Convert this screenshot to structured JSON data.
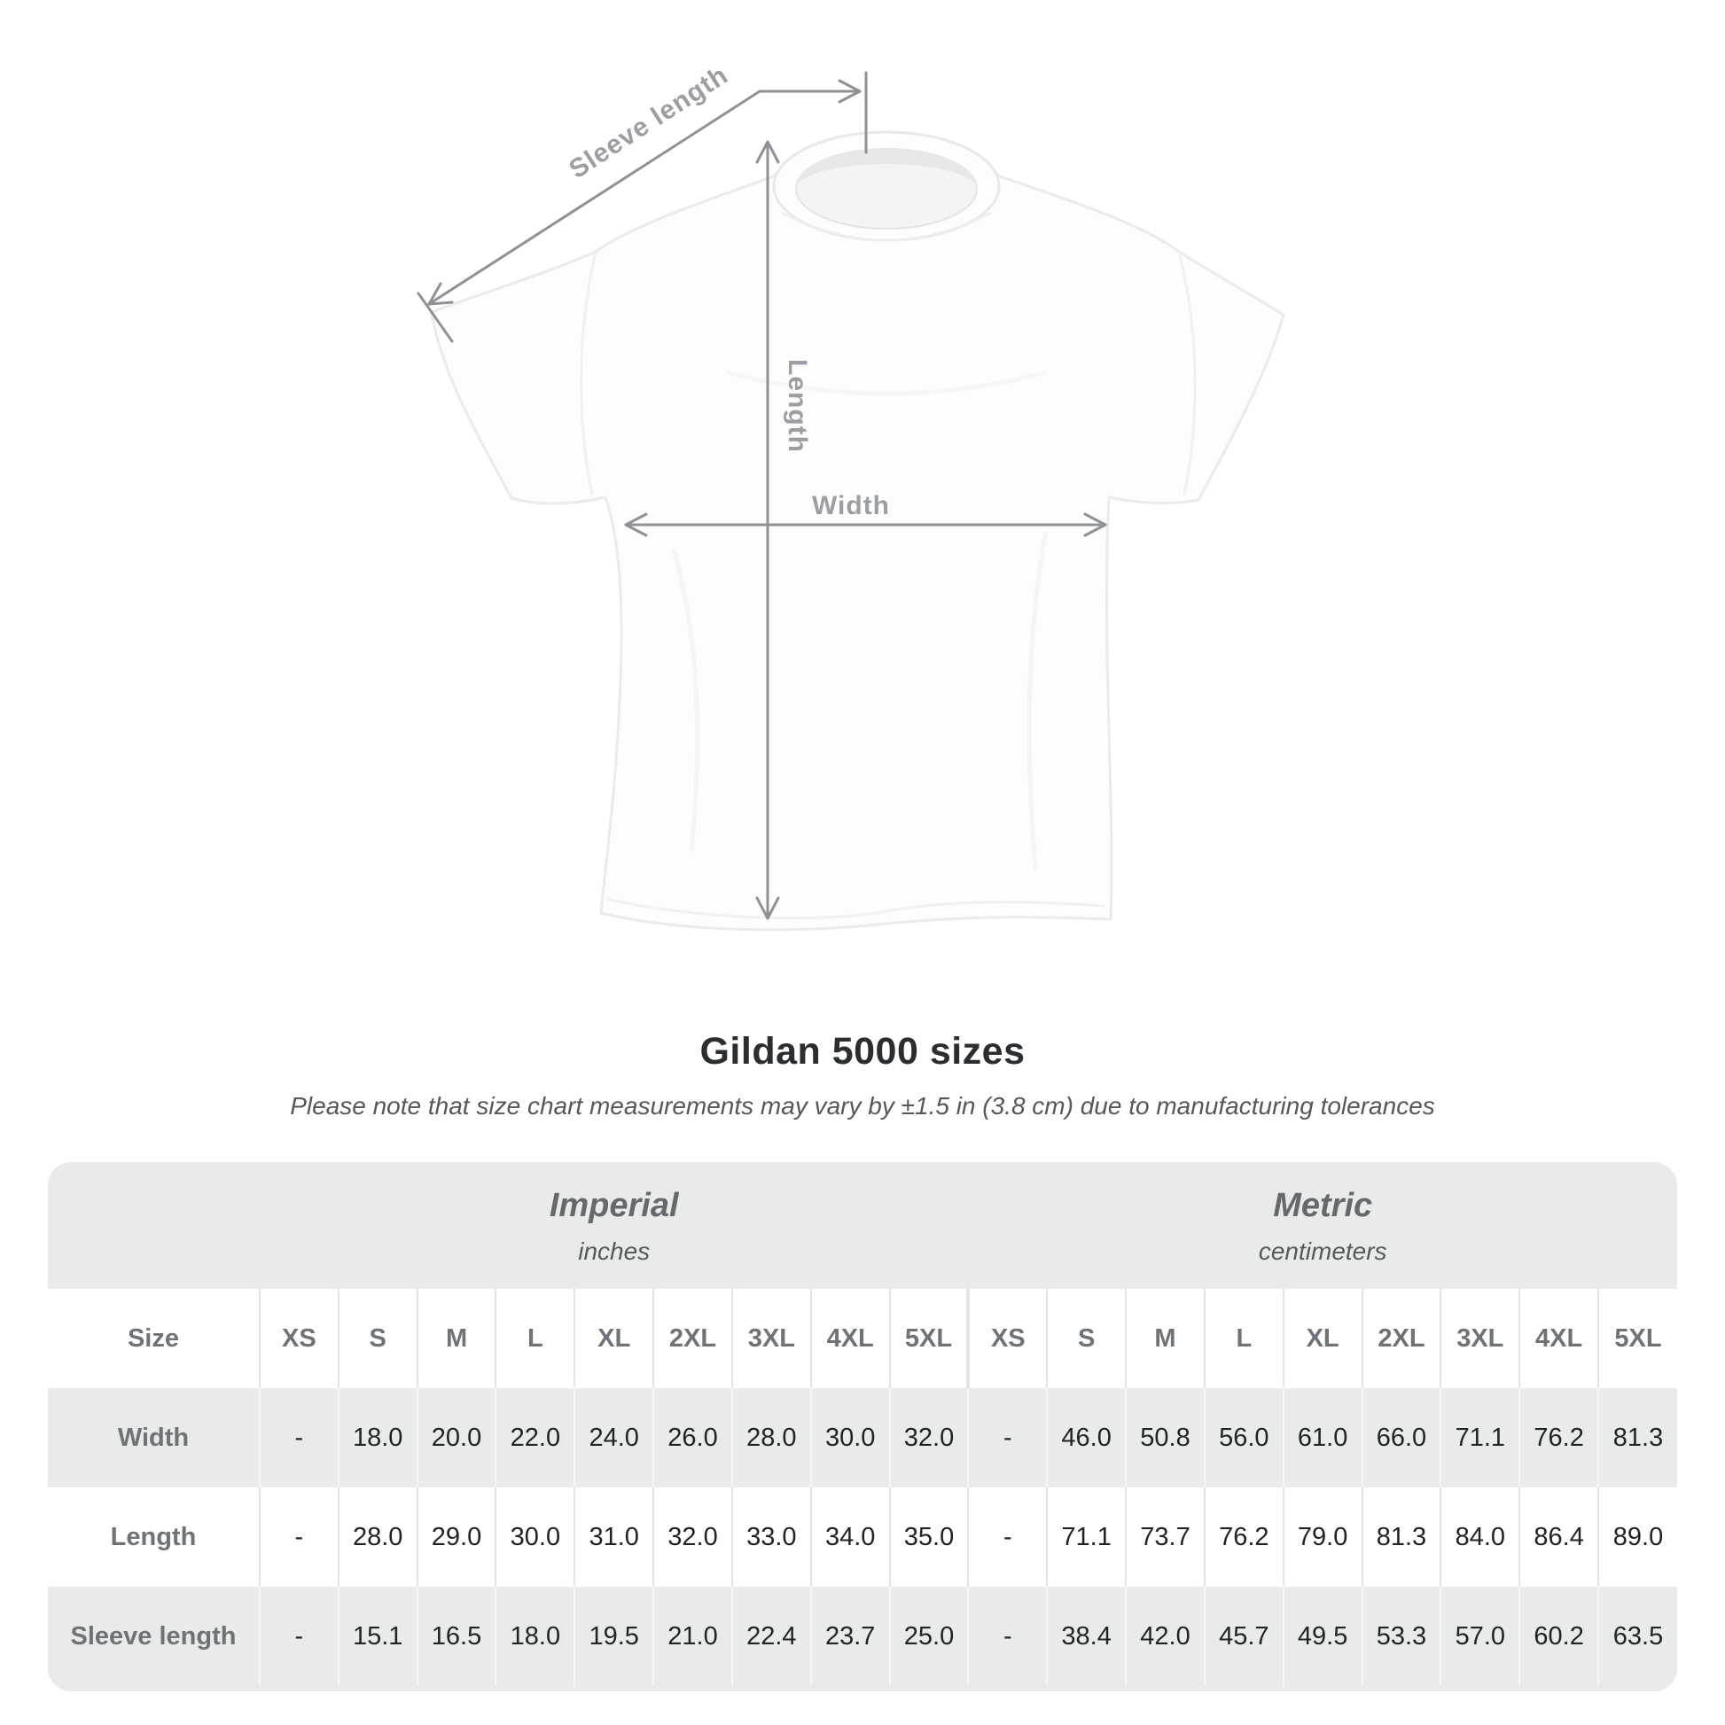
{
  "figure": {
    "labels": {
      "sleeve_length": "Sleeve length",
      "length": "Length",
      "width": "Width"
    }
  },
  "header": {
    "title": "Gildan 5000 sizes",
    "note": "Please note that size chart measurements may vary by ±1.5 in (3.8 cm) due to manufacturing tolerances"
  },
  "table": {
    "imperial": {
      "label": "Imperial",
      "unit": "inches"
    },
    "metric": {
      "label": "Metric",
      "unit": "centimeters"
    },
    "size_label": "Size",
    "columns": [
      "XS",
      "S",
      "M",
      "L",
      "XL",
      "2XL",
      "3XL",
      "4XL",
      "5XL",
      "XS",
      "S",
      "M",
      "L",
      "XL",
      "2XL",
      "3XL",
      "4XL",
      "5XL"
    ],
    "rows": [
      {
        "label": "Width",
        "values": [
          "-",
          "18.0",
          "20.0",
          "22.0",
          "24.0",
          "26.0",
          "28.0",
          "30.0",
          "32.0",
          "-",
          "46.0",
          "50.8",
          "56.0",
          "61.0",
          "66.0",
          "71.1",
          "76.2",
          "81.3"
        ]
      },
      {
        "label": "Length",
        "values": [
          "-",
          "28.0",
          "29.0",
          "30.0",
          "31.0",
          "32.0",
          "33.0",
          "34.0",
          "35.0",
          "-",
          "71.1",
          "73.7",
          "76.2",
          "79.0",
          "81.3",
          "84.0",
          "86.4",
          "89.0"
        ]
      },
      {
        "label": "Sleeve length",
        "values": [
          "-",
          "15.1",
          "16.5",
          "18.0",
          "19.5",
          "21.0",
          "22.4",
          "23.7",
          "25.0",
          "-",
          "38.4",
          "42.0",
          "45.7",
          "49.5",
          "53.3",
          "57.0",
          "60.2",
          "63.5"
        ]
      }
    ]
  },
  "colors": {
    "annotation_line": "#8e9296",
    "annotation_label": "#9b9fa3",
    "table_background": "#e9eaea",
    "header_text": "#6e7377",
    "value_text": "#212426",
    "title_text": "#2b2e30"
  }
}
